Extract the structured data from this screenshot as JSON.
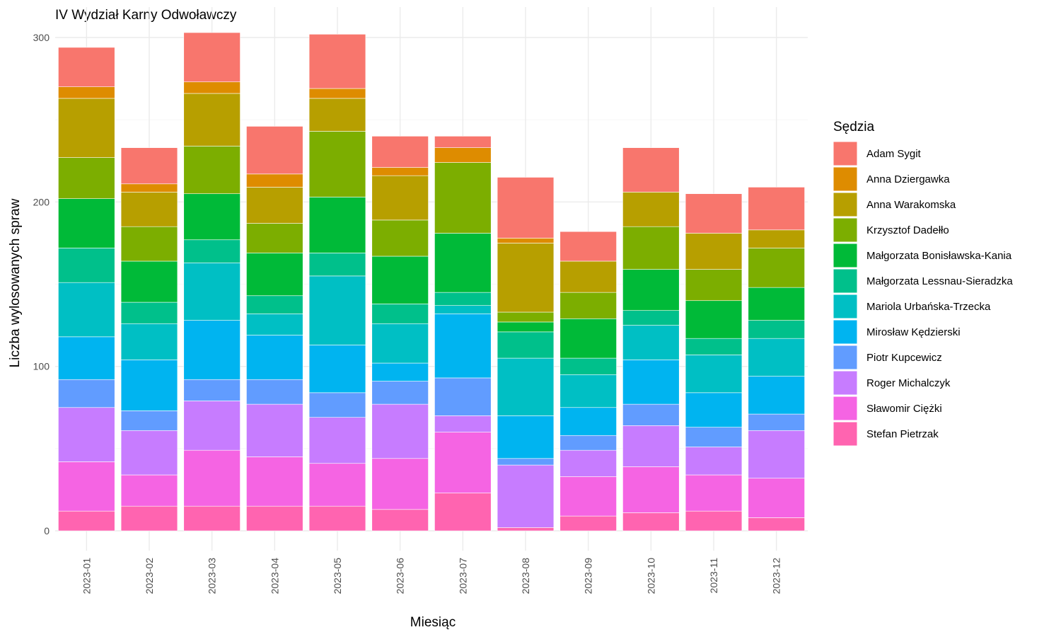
{
  "chart_data": {
    "type": "bar",
    "stacked": true,
    "title": "IV Wydział Karny Odwoławczy",
    "xlabel": "Miesiąc",
    "ylabel": "Liczba wylosowanych spraw",
    "ylim": [
      0,
      310
    ],
    "yticks": [
      0,
      100,
      200,
      300
    ],
    "grid": true,
    "legend_title": "Sędzia",
    "legend_position": "right",
    "categories": [
      "2023-01",
      "2023-02",
      "2023-03",
      "2023-04",
      "2023-05",
      "2023-06",
      "2023-07",
      "2023-08",
      "2023-09",
      "2023-10",
      "2023-11",
      "2023-12"
    ],
    "series": [
      {
        "name": "Adam Sygit",
        "color": "#F8766D",
        "values": [
          24,
          22,
          30,
          29,
          33,
          19,
          7,
          37,
          18,
          27,
          24,
          26
        ]
      },
      {
        "name": "Anna Dziergawka",
        "color": "#DE8C00",
        "values": [
          7,
          5,
          7,
          8,
          6,
          5,
          9,
          3,
          0,
          0,
          0,
          0
        ]
      },
      {
        "name": "Anna Warakomska",
        "color": "#B79F00",
        "values": [
          36,
          21,
          32,
          22,
          20,
          27,
          0,
          42,
          19,
          21,
          22,
          11
        ]
      },
      {
        "name": "Krzysztof Dadełło",
        "color": "#7CAE00",
        "values": [
          25,
          21,
          29,
          18,
          40,
          22,
          43,
          6,
          16,
          26,
          19,
          24
        ]
      },
      {
        "name": "Małgorzata Bonisławska-Kania",
        "color": "#00BA38",
        "values": [
          30,
          25,
          28,
          26,
          34,
          29,
          36,
          6,
          24,
          25,
          23,
          20
        ]
      },
      {
        "name": "Małgorzata Lessnau-Sieradzka",
        "color": "#00C08B",
        "values": [
          21,
          13,
          14,
          11,
          14,
          12,
          8,
          16,
          10,
          9,
          10,
          11
        ]
      },
      {
        "name": "Mariola Urbańska-Trzecka",
        "color": "#00BFC4",
        "values": [
          33,
          22,
          35,
          13,
          42,
          24,
          5,
          35,
          20,
          21,
          23,
          23
        ]
      },
      {
        "name": "Mirosław Kędzierski",
        "color": "#00B4F0",
        "values": [
          26,
          31,
          36,
          27,
          29,
          11,
          39,
          26,
          17,
          27,
          21,
          23
        ]
      },
      {
        "name": "Piotr Kupcewicz",
        "color": "#619CFF",
        "values": [
          17,
          12,
          13,
          15,
          15,
          14,
          23,
          4,
          9,
          13,
          12,
          10
        ]
      },
      {
        "name": "Roger Michalczyk",
        "color": "#C77CFF",
        "values": [
          33,
          27,
          30,
          32,
          28,
          33,
          10,
          38,
          16,
          25,
          17,
          29
        ]
      },
      {
        "name": "Sławomir Ciężki",
        "color": "#F564E3",
        "values": [
          30,
          19,
          34,
          30,
          26,
          31,
          37,
          0,
          24,
          28,
          22,
          24
        ]
      },
      {
        "name": "Stefan Pietrzak",
        "color": "#FF64B0",
        "values": [
          12,
          15,
          15,
          15,
          15,
          13,
          23,
          2,
          9,
          11,
          12,
          8
        ]
      }
    ]
  }
}
